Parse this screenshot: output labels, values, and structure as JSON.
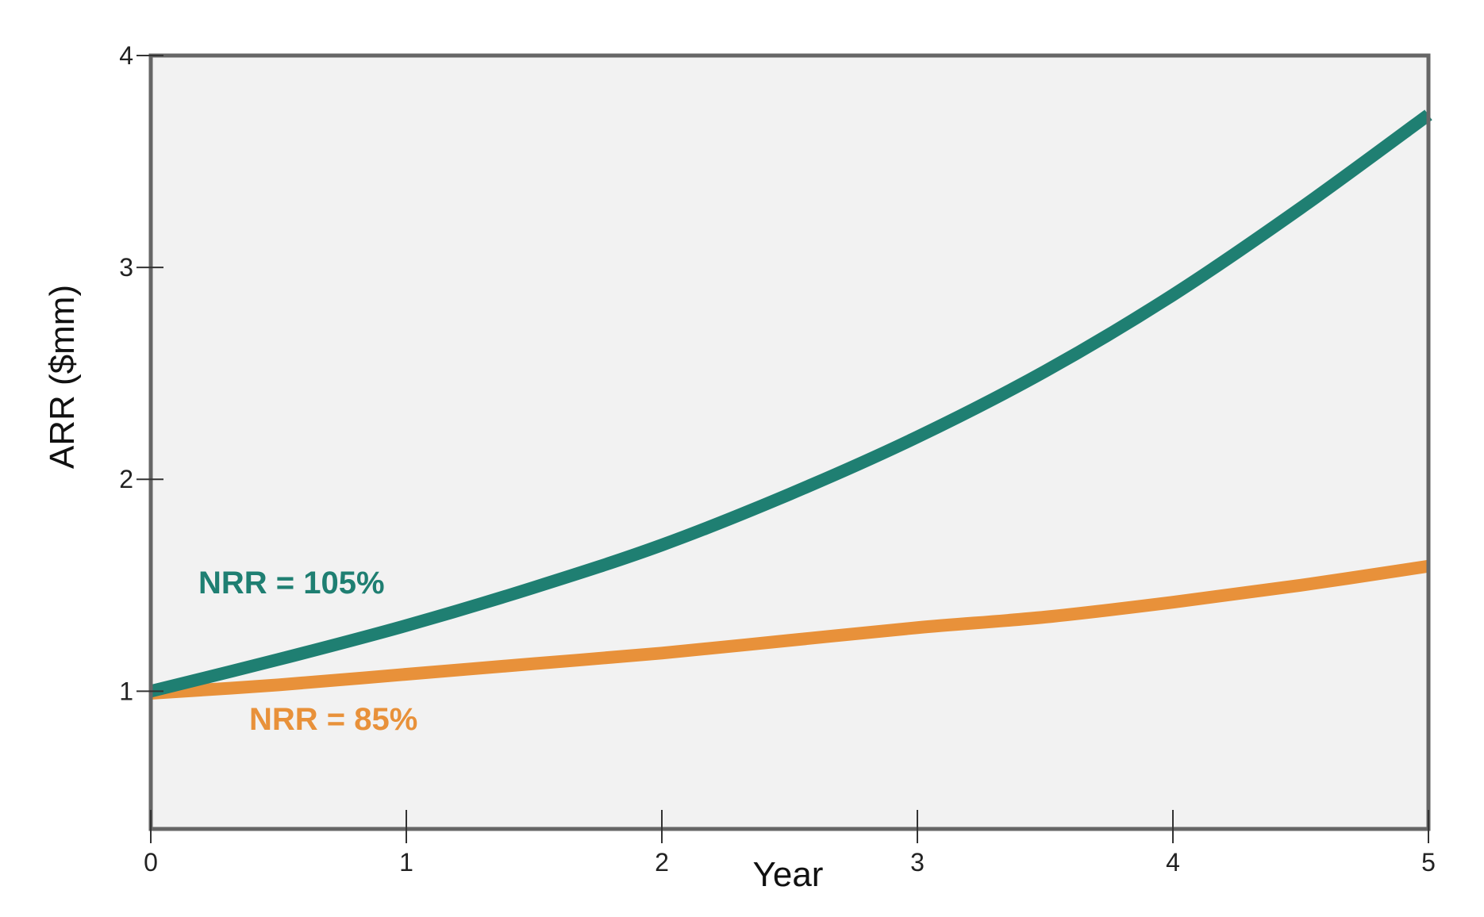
{
  "chart_data": {
    "type": "line",
    "title": "",
    "xlabel": "Year",
    "ylabel": "ARR ($mm)",
    "xlim": [
      0,
      5
    ],
    "ylim": [
      0.35,
      4
    ],
    "x_ticks": [
      0,
      1,
      2,
      3,
      4,
      5
    ],
    "y_ticks": [
      1,
      2,
      3,
      4
    ],
    "grid": false,
    "background_color": "#f2f2f2",
    "frame_color": "#666666",
    "x": [
      0,
      0.5,
      1,
      1.5,
      2,
      2.5,
      3,
      3.5,
      4,
      4.5,
      5
    ],
    "series": [
      {
        "name": "NRR = 105%",
        "color": "#1f7f72",
        "values": [
          1.0,
          1.15,
          1.31,
          1.49,
          1.69,
          1.93,
          2.2,
          2.51,
          2.87,
          3.28,
          3.72
        ]
      },
      {
        "name": "NRR = 85%",
        "color": "#e8913a",
        "values": [
          0.99,
          1.03,
          1.08,
          1.13,
          1.18,
          1.24,
          1.3,
          1.35,
          1.42,
          1.5,
          1.59
        ]
      }
    ]
  }
}
